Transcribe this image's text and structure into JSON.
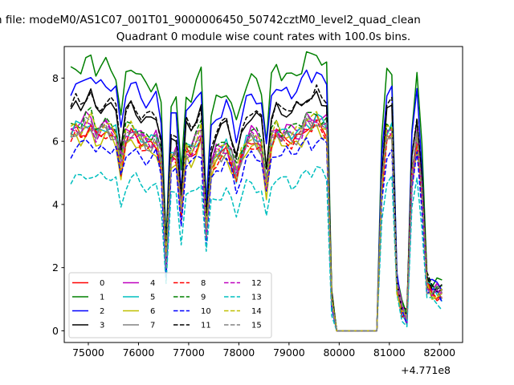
{
  "chart_data": {
    "type": "line",
    "suptitle": "n file: modeM0/AS1C07_001T01_9000006450_50742cztM0_level2_quad_clean",
    "title": "Quadrant 0 module wise count rates with 100.0s bins.",
    "xlabel": "",
    "ylabel": "",
    "x_offset_label": "+4.771e8",
    "xlim": [
      74520,
      82460
    ],
    "ylim": [
      -0.37,
      9.0
    ],
    "xticks": [
      75000,
      76000,
      77000,
      78000,
      79000,
      80000,
      81000,
      82000
    ],
    "xtick_labels": [
      "75000",
      "76000",
      "77000",
      "78000",
      "79000",
      "80000",
      "81000",
      "82000"
    ],
    "yticks": [
      0,
      2,
      4,
      6,
      8
    ],
    "ytick_labels": [
      "0",
      "2",
      "4",
      "6",
      "8"
    ],
    "legend_location": "lower-left",
    "x_start": 74650,
    "x_step": 100,
    "base_profile": [
      6.6,
      6.8,
      6.7,
      6.9,
      7.0,
      6.6,
      6.7,
      6.8,
      6.7,
      6.6,
      5.5,
      6.5,
      6.7,
      6.6,
      6.4,
      6.3,
      6.3,
      6.4,
      5.7,
      2.2,
      5.8,
      5.9,
      4.0,
      6.1,
      6.0,
      6.3,
      6.6,
      3.3,
      5.5,
      5.9,
      6.0,
      6.2,
      5.8,
      5.2,
      5.8,
      6.3,
      6.5,
      6.4,
      6.2,
      4.9,
      6.4,
      6.7,
      6.5,
      6.6,
      6.5,
      6.6,
      6.7,
      7.0,
      6.9,
      7.1,
      6.9,
      6.8,
      1.0,
      0.0,
      0.0,
      0.0,
      0.0,
      0.0,
      0.0,
      0.0,
      0.0,
      0.0,
      4.8,
      6.6,
      6.7,
      1.5,
      0.7,
      0.4,
      5.2,
      6.5,
      4.6,
      1.5,
      1.3,
      1.3,
      1.2
    ],
    "series": [
      {
        "name": "0",
        "color": "#ff0000",
        "dash": "solid",
        "scale": 0.93
      },
      {
        "name": "1",
        "color": "#008000",
        "dash": "solid",
        "scale": 1.24
      },
      {
        "name": "2",
        "color": "#0000ff",
        "dash": "solid",
        "scale": 1.16
      },
      {
        "name": "3",
        "color": "#000000",
        "dash": "solid",
        "scale": 1.06
      },
      {
        "name": "4",
        "color": "#bf00bf",
        "dash": "solid",
        "scale": 0.97
      },
      {
        "name": "5",
        "color": "#00bfbf",
        "dash": "solid",
        "scale": 0.95
      },
      {
        "name": "6",
        "color": "#bfbf00",
        "dash": "solid",
        "scale": 0.9
      },
      {
        "name": "7",
        "color": "#808080",
        "dash": "solid",
        "scale": 0.93
      },
      {
        "name": "8",
        "color": "#ff0000",
        "dash": "dashed",
        "scale": 0.92
      },
      {
        "name": "9",
        "color": "#008000",
        "dash": "dashed",
        "scale": 0.98
      },
      {
        "name": "10",
        "color": "#0000ff",
        "dash": "dashed",
        "scale": 0.86
      },
      {
        "name": "11",
        "color": "#000000",
        "dash": "dashed",
        "scale": 1.07
      },
      {
        "name": "12",
        "color": "#bf00bf",
        "dash": "dashed",
        "scale": 0.94
      },
      {
        "name": "13",
        "color": "#00bfbf",
        "dash": "dashed",
        "scale": 0.72
      },
      {
        "name": "14",
        "color": "#bfbf00",
        "dash": "dashed",
        "scale": 0.96
      },
      {
        "name": "15",
        "color": "#808080",
        "dash": "dashed",
        "scale": 0.95
      }
    ]
  }
}
